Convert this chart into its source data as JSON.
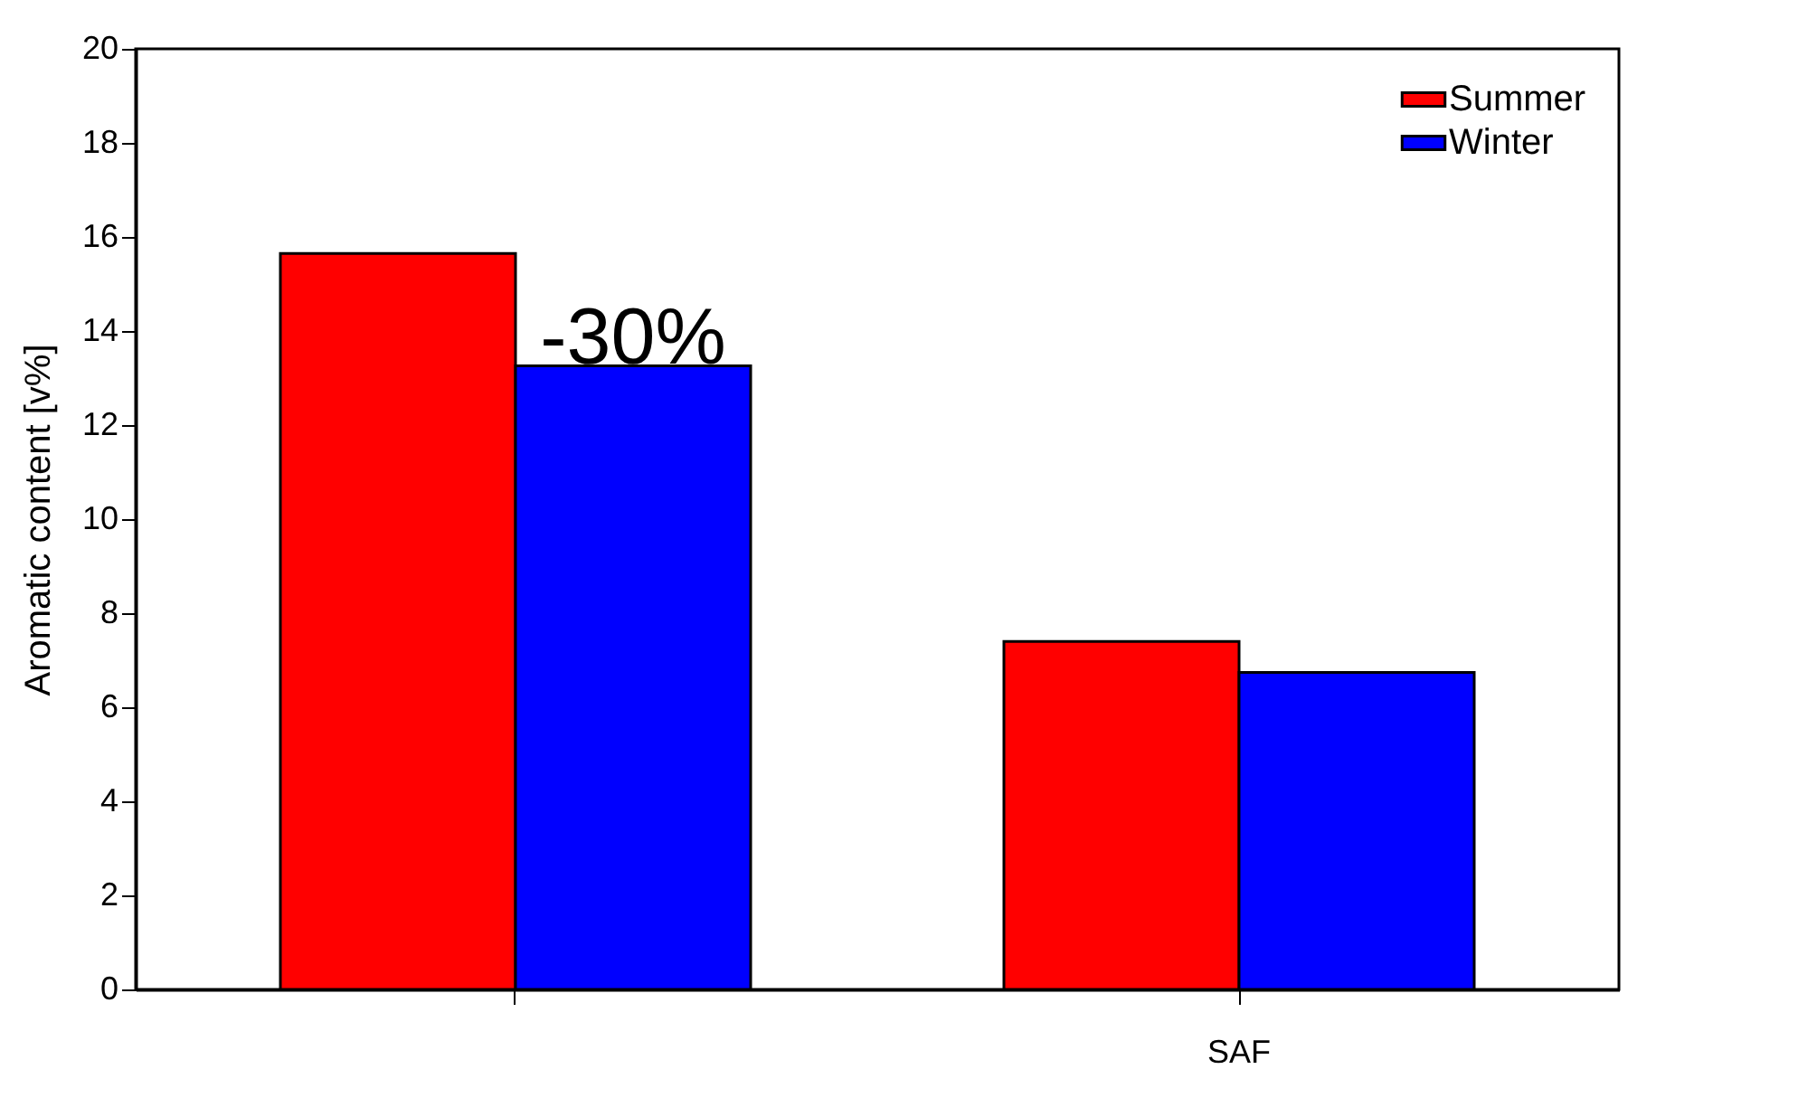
{
  "chart_data": {
    "type": "bar",
    "ylabel": "Aromatic content [v%]",
    "categories": [
      null,
      "SAF"
    ],
    "series": [
      {
        "name": "Summer",
        "color": "#ff0000",
        "values": [
          15.65,
          7.4
        ]
      },
      {
        "name": "Winter",
        "color": "#0000ff",
        "values": [
          13.26,
          6.74
        ]
      }
    ],
    "ylim": [
      0,
      20
    ],
    "yticks": [
      0,
      2,
      4,
      6,
      8,
      10,
      12,
      14,
      16,
      18,
      20
    ],
    "legend": "top right",
    "grid": false,
    "annotations": [
      "-30%"
    ]
  }
}
